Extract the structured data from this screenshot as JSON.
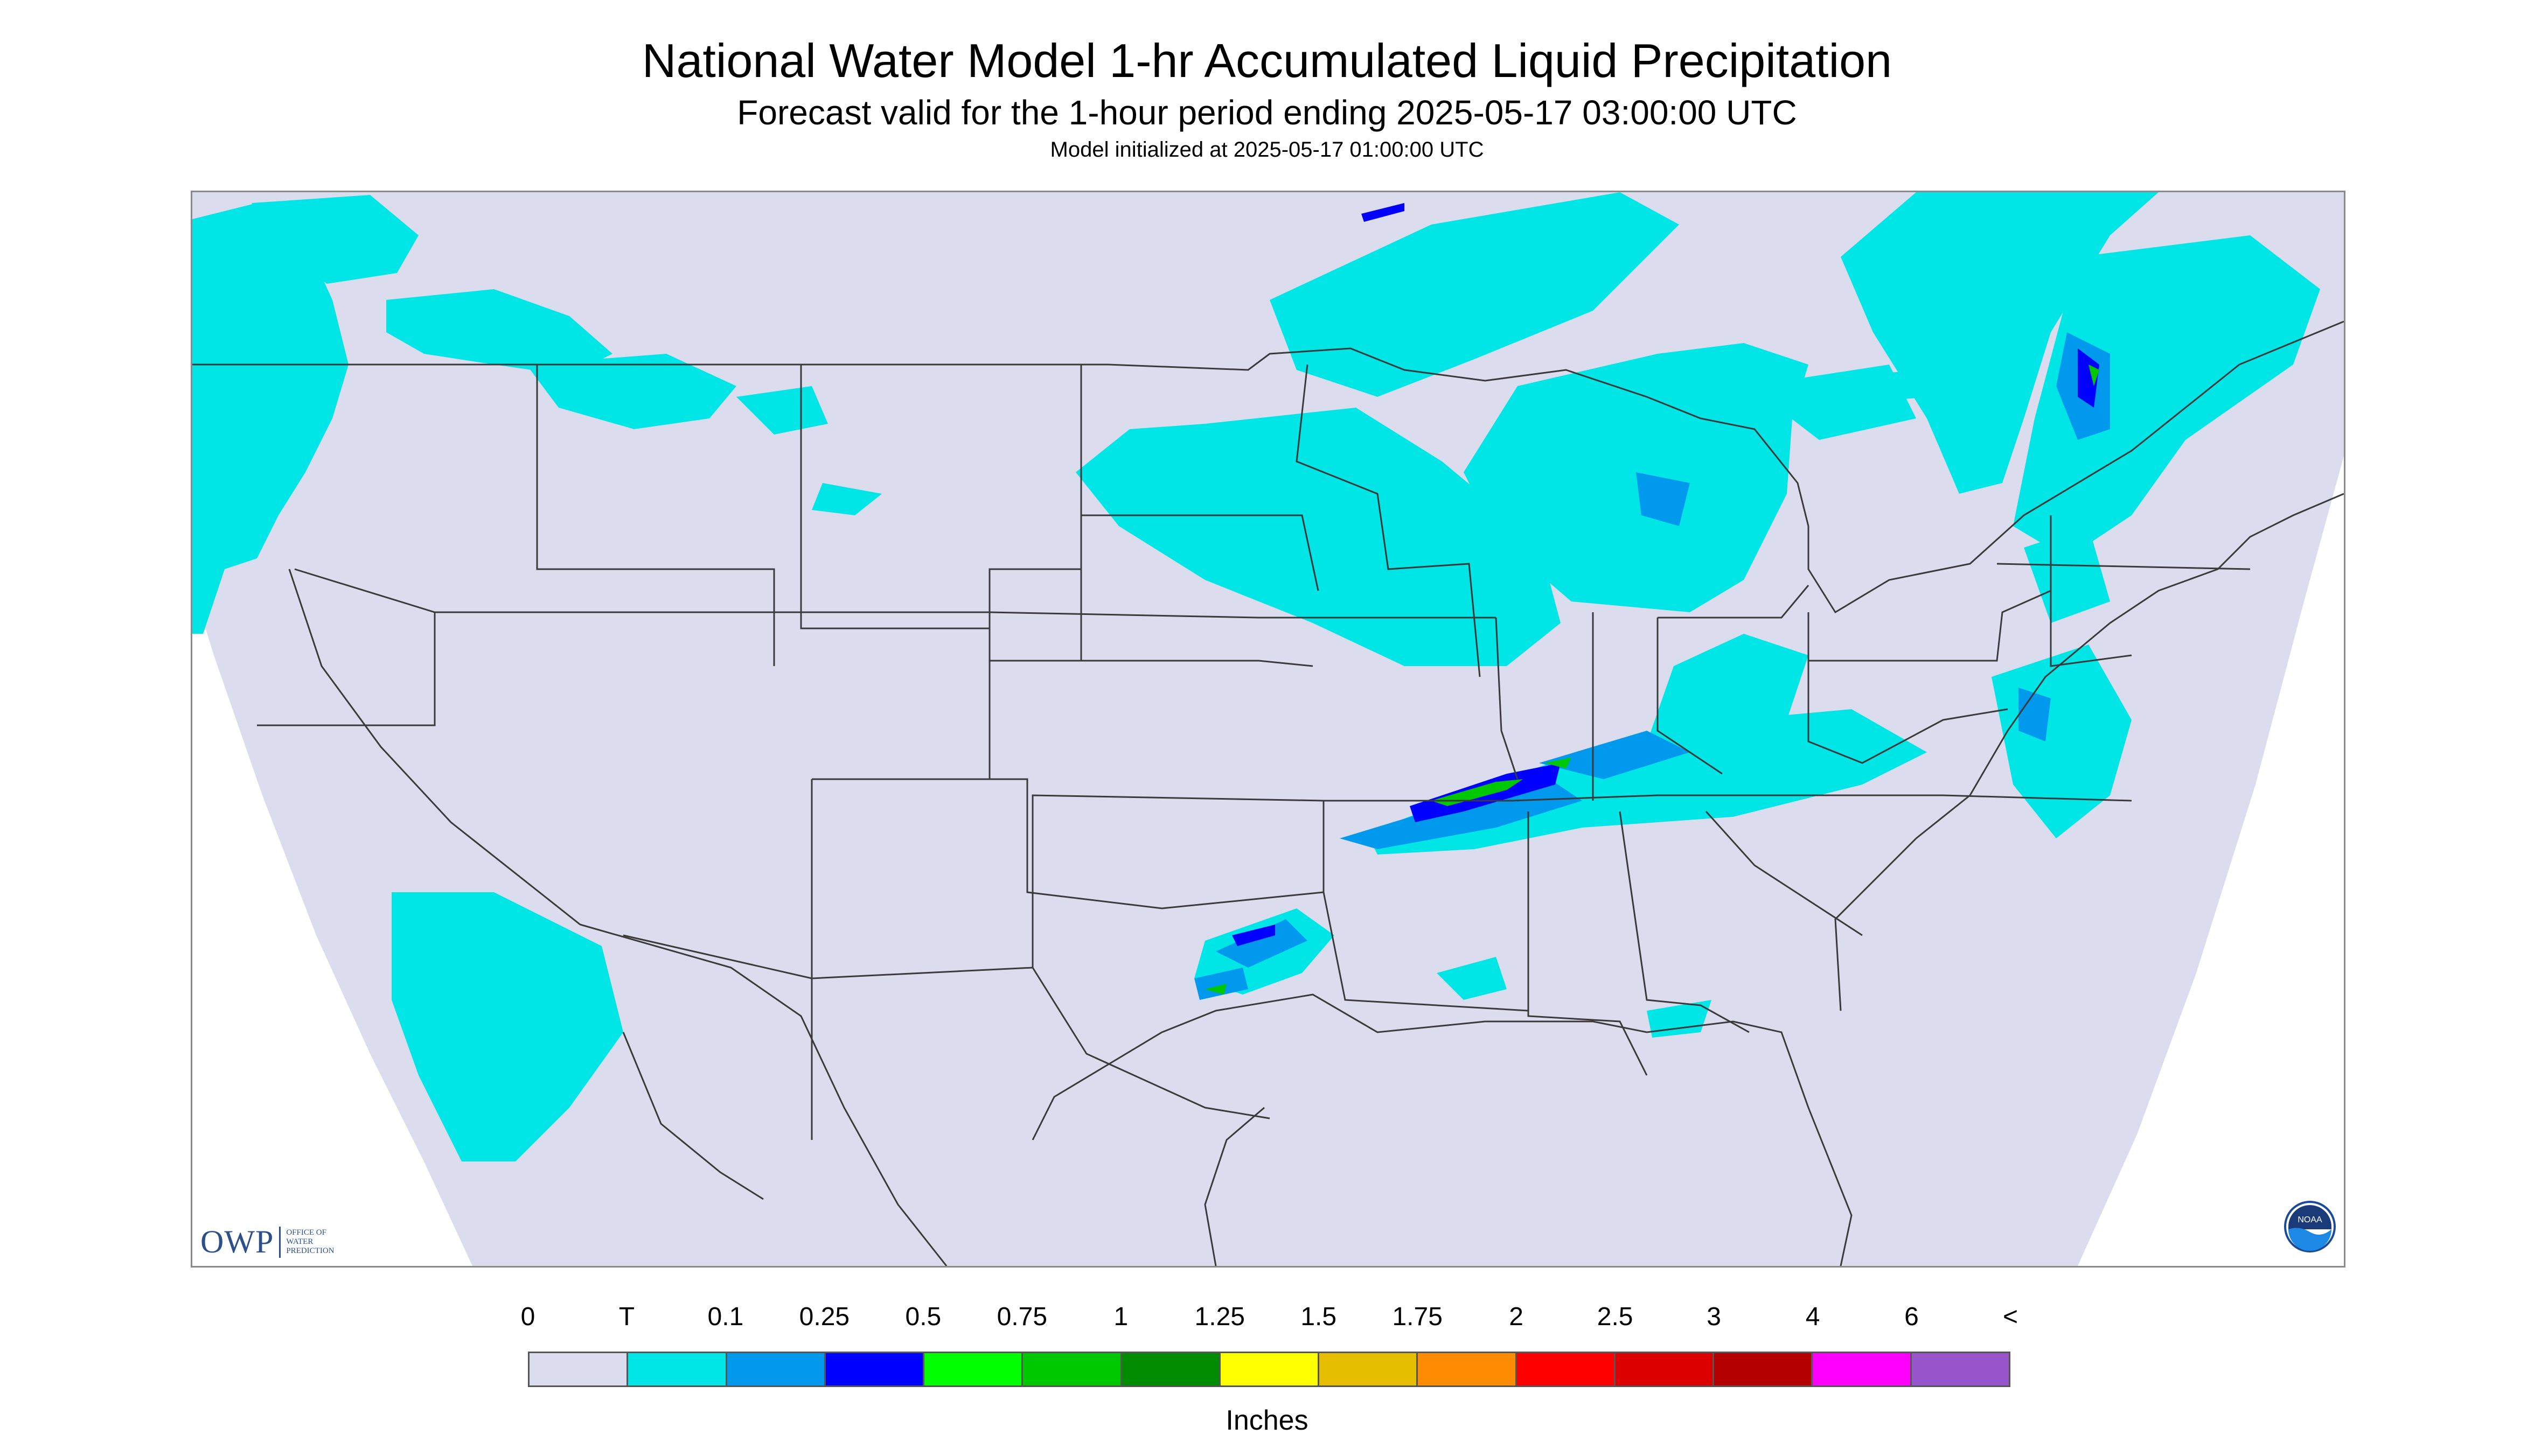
{
  "header": {
    "title": "National Water Model 1-hr Accumulated Liquid Precipitation",
    "subtitle": "Forecast valid for the 1-hour period ending 2025-05-17 03:00:00 UTC",
    "init_line": "Model initialized at 2025-05-17 01:00:00 UTC"
  },
  "map": {
    "background_color": "#dcdcef",
    "outside_domain_color": "#ffffff",
    "boundary_color": "#3a3a3a",
    "precip_regions": [
      {
        "region": "Pacific Northwest coast",
        "level": "T"
      },
      {
        "region": "Northern Rockies / Montana",
        "level": "T"
      },
      {
        "region": "Upper Midwest / Minnesota / Wisconsin",
        "level": "T"
      },
      {
        "region": "Michigan",
        "level": "0.1"
      },
      {
        "region": "Ohio Valley / Kentucky",
        "level": "0.75"
      },
      {
        "region": "North Texas",
        "level": "0.75"
      },
      {
        "region": "Quebec / Northeast",
        "level": "0.5"
      },
      {
        "region": "Baja California / Northwest Mexico",
        "level": "T"
      }
    ]
  },
  "logos": {
    "owp_text": "OWP",
    "owp_small": [
      "OFFICE OF",
      "WATER",
      "PREDICTION"
    ],
    "noaa_text": "NOAA"
  },
  "legend": {
    "labels": [
      "0",
      "T",
      "0.1",
      "0.25",
      "0.5",
      "0.75",
      "1",
      "1.25",
      "1.5",
      "1.75",
      "2",
      "2.5",
      "3",
      "4",
      "6",
      "<"
    ],
    "colors": [
      "#dcdcef",
      "#00e6e6",
      "#0099ee",
      "#0000ff",
      "#00ff00",
      "#00c800",
      "#008c00",
      "#ffff00",
      "#e6be00",
      "#ff8c00",
      "#ff0000",
      "#dc0000",
      "#b40000",
      "#ff00ff",
      "#9955cc"
    ],
    "units": "Inches"
  }
}
